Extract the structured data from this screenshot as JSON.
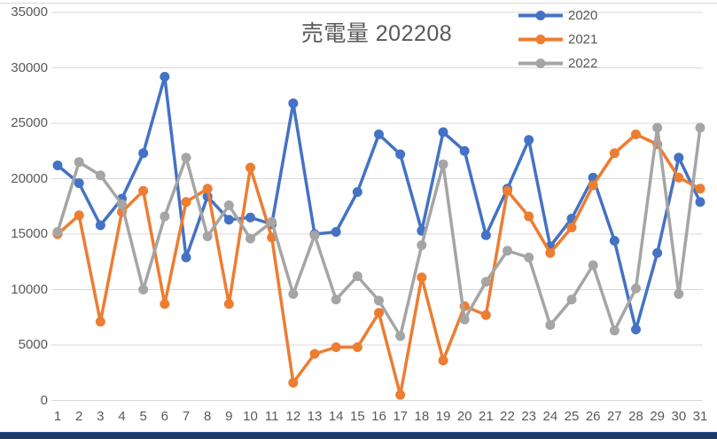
{
  "chart_data": {
    "type": "line",
    "title": "売電量 202208",
    "xlabel": "",
    "ylabel": "",
    "x": [
      1,
      2,
      3,
      4,
      5,
      6,
      7,
      8,
      9,
      10,
      11,
      12,
      13,
      14,
      15,
      16,
      17,
      18,
      19,
      20,
      21,
      22,
      23,
      24,
      25,
      26,
      27,
      28,
      29,
      30,
      31
    ],
    "y_ticks": [
      "0",
      "5000",
      "10000",
      "15000",
      "20000",
      "25000",
      "30000",
      "35000"
    ],
    "ylim": [
      0,
      35000
    ],
    "grid": true,
    "legend_position": "top-right",
    "series": [
      {
        "name": "2020",
        "color": "#4472C4",
        "values": [
          21200,
          19600,
          15800,
          18200,
          22300,
          29200,
          12900,
          18400,
          16300,
          16500,
          15900,
          26800,
          15000,
          15200,
          18800,
          24000,
          22200,
          15300,
          24200,
          22500,
          14900,
          19100,
          23500,
          13900,
          16400,
          20100,
          14400,
          6400,
          13300,
          21900,
          17900
        ]
      },
      {
        "name": "2021",
        "color": "#ED7D31",
        "values": [
          15000,
          16700,
          7100,
          17000,
          18900,
          8700,
          17900,
          19100,
          8700,
          21000,
          14700,
          1600,
          4200,
          4800,
          4800,
          7900,
          500,
          11100,
          3600,
          8500,
          7700,
          18900,
          16600,
          13300,
          15600,
          19400,
          22300,
          24000,
          23100,
          20100,
          19100
        ]
      },
      {
        "name": "2022",
        "color": "#A5A5A5",
        "values": [
          15200,
          21500,
          20300,
          17700,
          10000,
          16600,
          21900,
          14800,
          17600,
          14600,
          16100,
          9600,
          14900,
          9100,
          11200,
          9000,
          5800,
          14000,
          21300,
          7300,
          10700,
          13500,
          12900,
          6800,
          9100,
          12200,
          6300,
          10100,
          24600,
          9600,
          24600
        ]
      }
    ],
    "gridline_color": "#d9d9d9",
    "bottom_bar_color": "#1f3864"
  }
}
